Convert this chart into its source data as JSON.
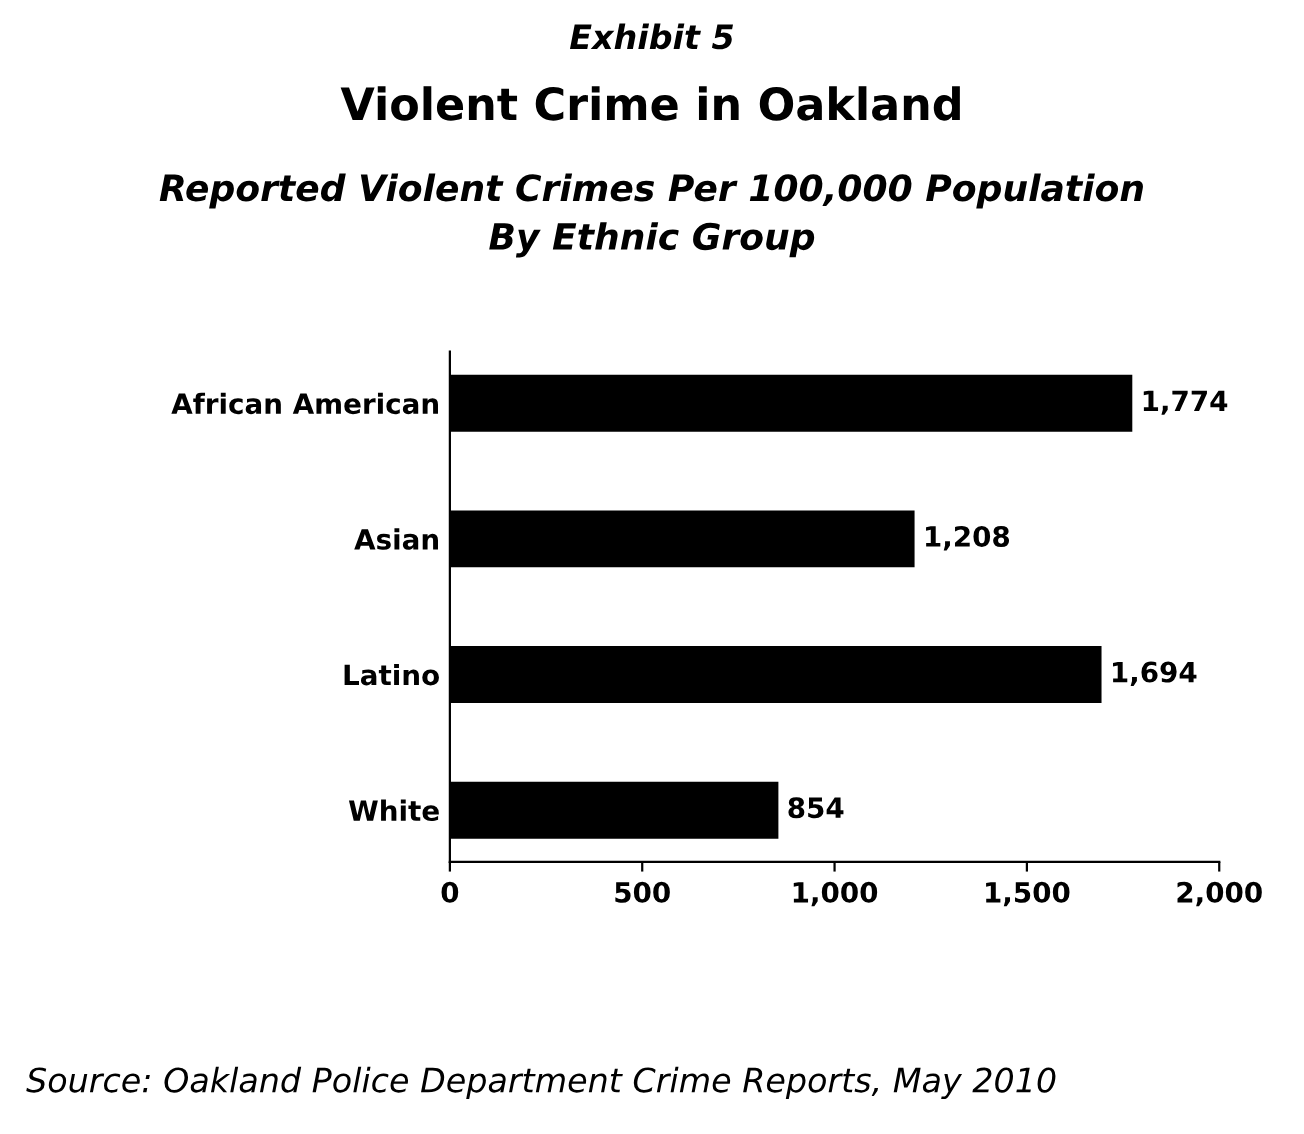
{
  "chart_data": {
    "type": "bar",
    "orientation": "horizontal",
    "title": "Violent Crime in Oakland",
    "subtitle": "Reported Violent Crimes Per 100,000 Population\nBy Ethnic Group",
    "annotations": [
      "Exhibit 5",
      "Source: Oakland Police Department Crime Reports, May 2010"
    ],
    "categories": [
      "African American",
      "Asian",
      "Latino",
      "White"
    ],
    "values": [
      1774,
      1208,
      1694,
      854
    ],
    "color": "#000000",
    "value_labels": [
      "1,774",
      "1,208",
      "1,694",
      "854"
    ],
    "xlim": [
      0,
      2000
    ],
    "xticks": [
      0,
      500,
      {
        "value": 1000,
        "label": "1,000"
      },
      {
        "value": 1500,
        "label": "1,500"
      },
      {
        "value": 2000,
        "label": "2,000"
      }
    ],
    "grid": false
  }
}
